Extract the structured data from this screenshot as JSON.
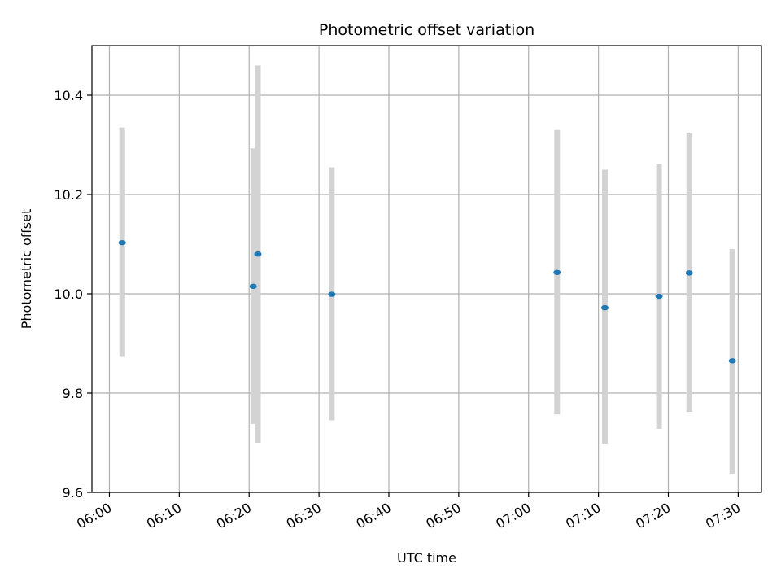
{
  "chart_data": {
    "type": "scatter",
    "title": "Photometric offset variation",
    "xlabel": "UTC time",
    "ylabel": "Photometric offset",
    "xlim": [
      "05:57:30",
      "07:33:20"
    ],
    "ylim": [
      9.6,
      10.5
    ],
    "x_ticks": [
      "06:00",
      "06:10",
      "06:20",
      "06:30",
      "06:40",
      "06:50",
      "07:00",
      "07:10",
      "07:20",
      "07:30"
    ],
    "y_ticks": [
      9.6,
      9.8,
      10.0,
      10.2,
      10.4
    ],
    "y_tick_labels": [
      "9.6",
      "9.8",
      "10.0",
      "10.2",
      "10.4"
    ],
    "grid": true,
    "colors": {
      "points": "#1f77b4",
      "error_bars": "#d3d3d3",
      "grid": "#b0b0b0"
    },
    "series": [
      {
        "x": [
          "06:01:50",
          "06:20:35",
          "06:21:15",
          "06:31:50",
          "07:04:05",
          "07:10:55",
          "07:18:40",
          "07:23:00",
          "07:29:10"
        ],
        "y": [
          10.103,
          10.015,
          10.08,
          9.999,
          10.043,
          9.972,
          9.995,
          10.042,
          9.865
        ],
        "yerr_low": [
          9.873,
          9.738,
          9.7,
          9.745,
          9.757,
          9.698,
          9.728,
          9.762,
          9.638
        ],
        "yerr_high": [
          10.335,
          10.293,
          10.46,
          10.255,
          10.33,
          10.25,
          10.262,
          10.323,
          10.09
        ]
      }
    ]
  }
}
